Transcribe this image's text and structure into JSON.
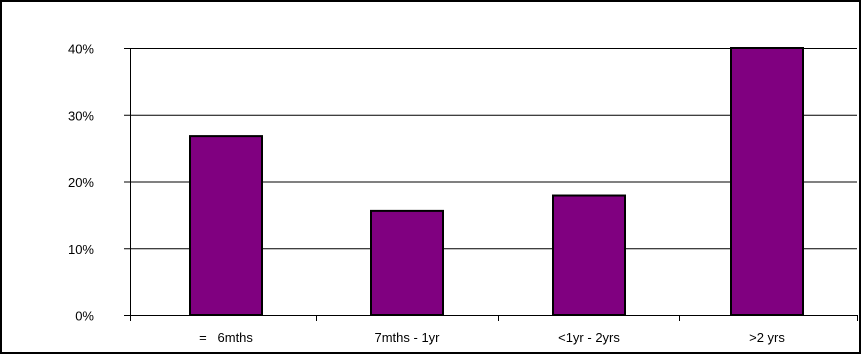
{
  "chart_data": {
    "type": "bar",
    "title": "",
    "xlabel": "",
    "ylabel": "",
    "categories": [
      "=   6mths",
      "7mths - 1yr",
      "<1yr - 2yrs",
      ">2 yrs"
    ],
    "values": [
      26.8,
      15.6,
      17.9,
      40.0
    ],
    "ylim": [
      0,
      40
    ],
    "yticks": [
      0,
      10,
      20,
      30,
      40
    ],
    "ytick_labels": [
      "0%",
      "10%",
      "20%",
      "30%",
      "40%"
    ],
    "grid": "horizontal",
    "legend": "none",
    "colors": {
      "bar_fill": "#800080",
      "bar_stroke": "#000000",
      "grid": "#000000"
    }
  }
}
